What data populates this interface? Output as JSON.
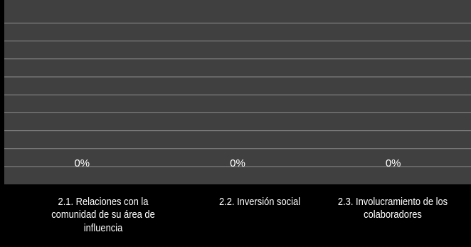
{
  "chart_data": {
    "type": "bar",
    "categories": [
      "2.1. Relaciones con la comunidad de su área de influencia",
      "2.2. Inversión social",
      "2.3. Involucramiento de los colaboradores"
    ],
    "values": [
      0,
      0,
      0
    ],
    "data_labels": [
      "0%",
      "0%",
      "0%"
    ],
    "ylim": [
      0,
      1
    ],
    "grid": true,
    "legend": "none",
    "colors": {
      "background": "#000000",
      "plot_area": "#404040",
      "gridline": "#8c8c8c",
      "text": "#ffffff"
    }
  }
}
